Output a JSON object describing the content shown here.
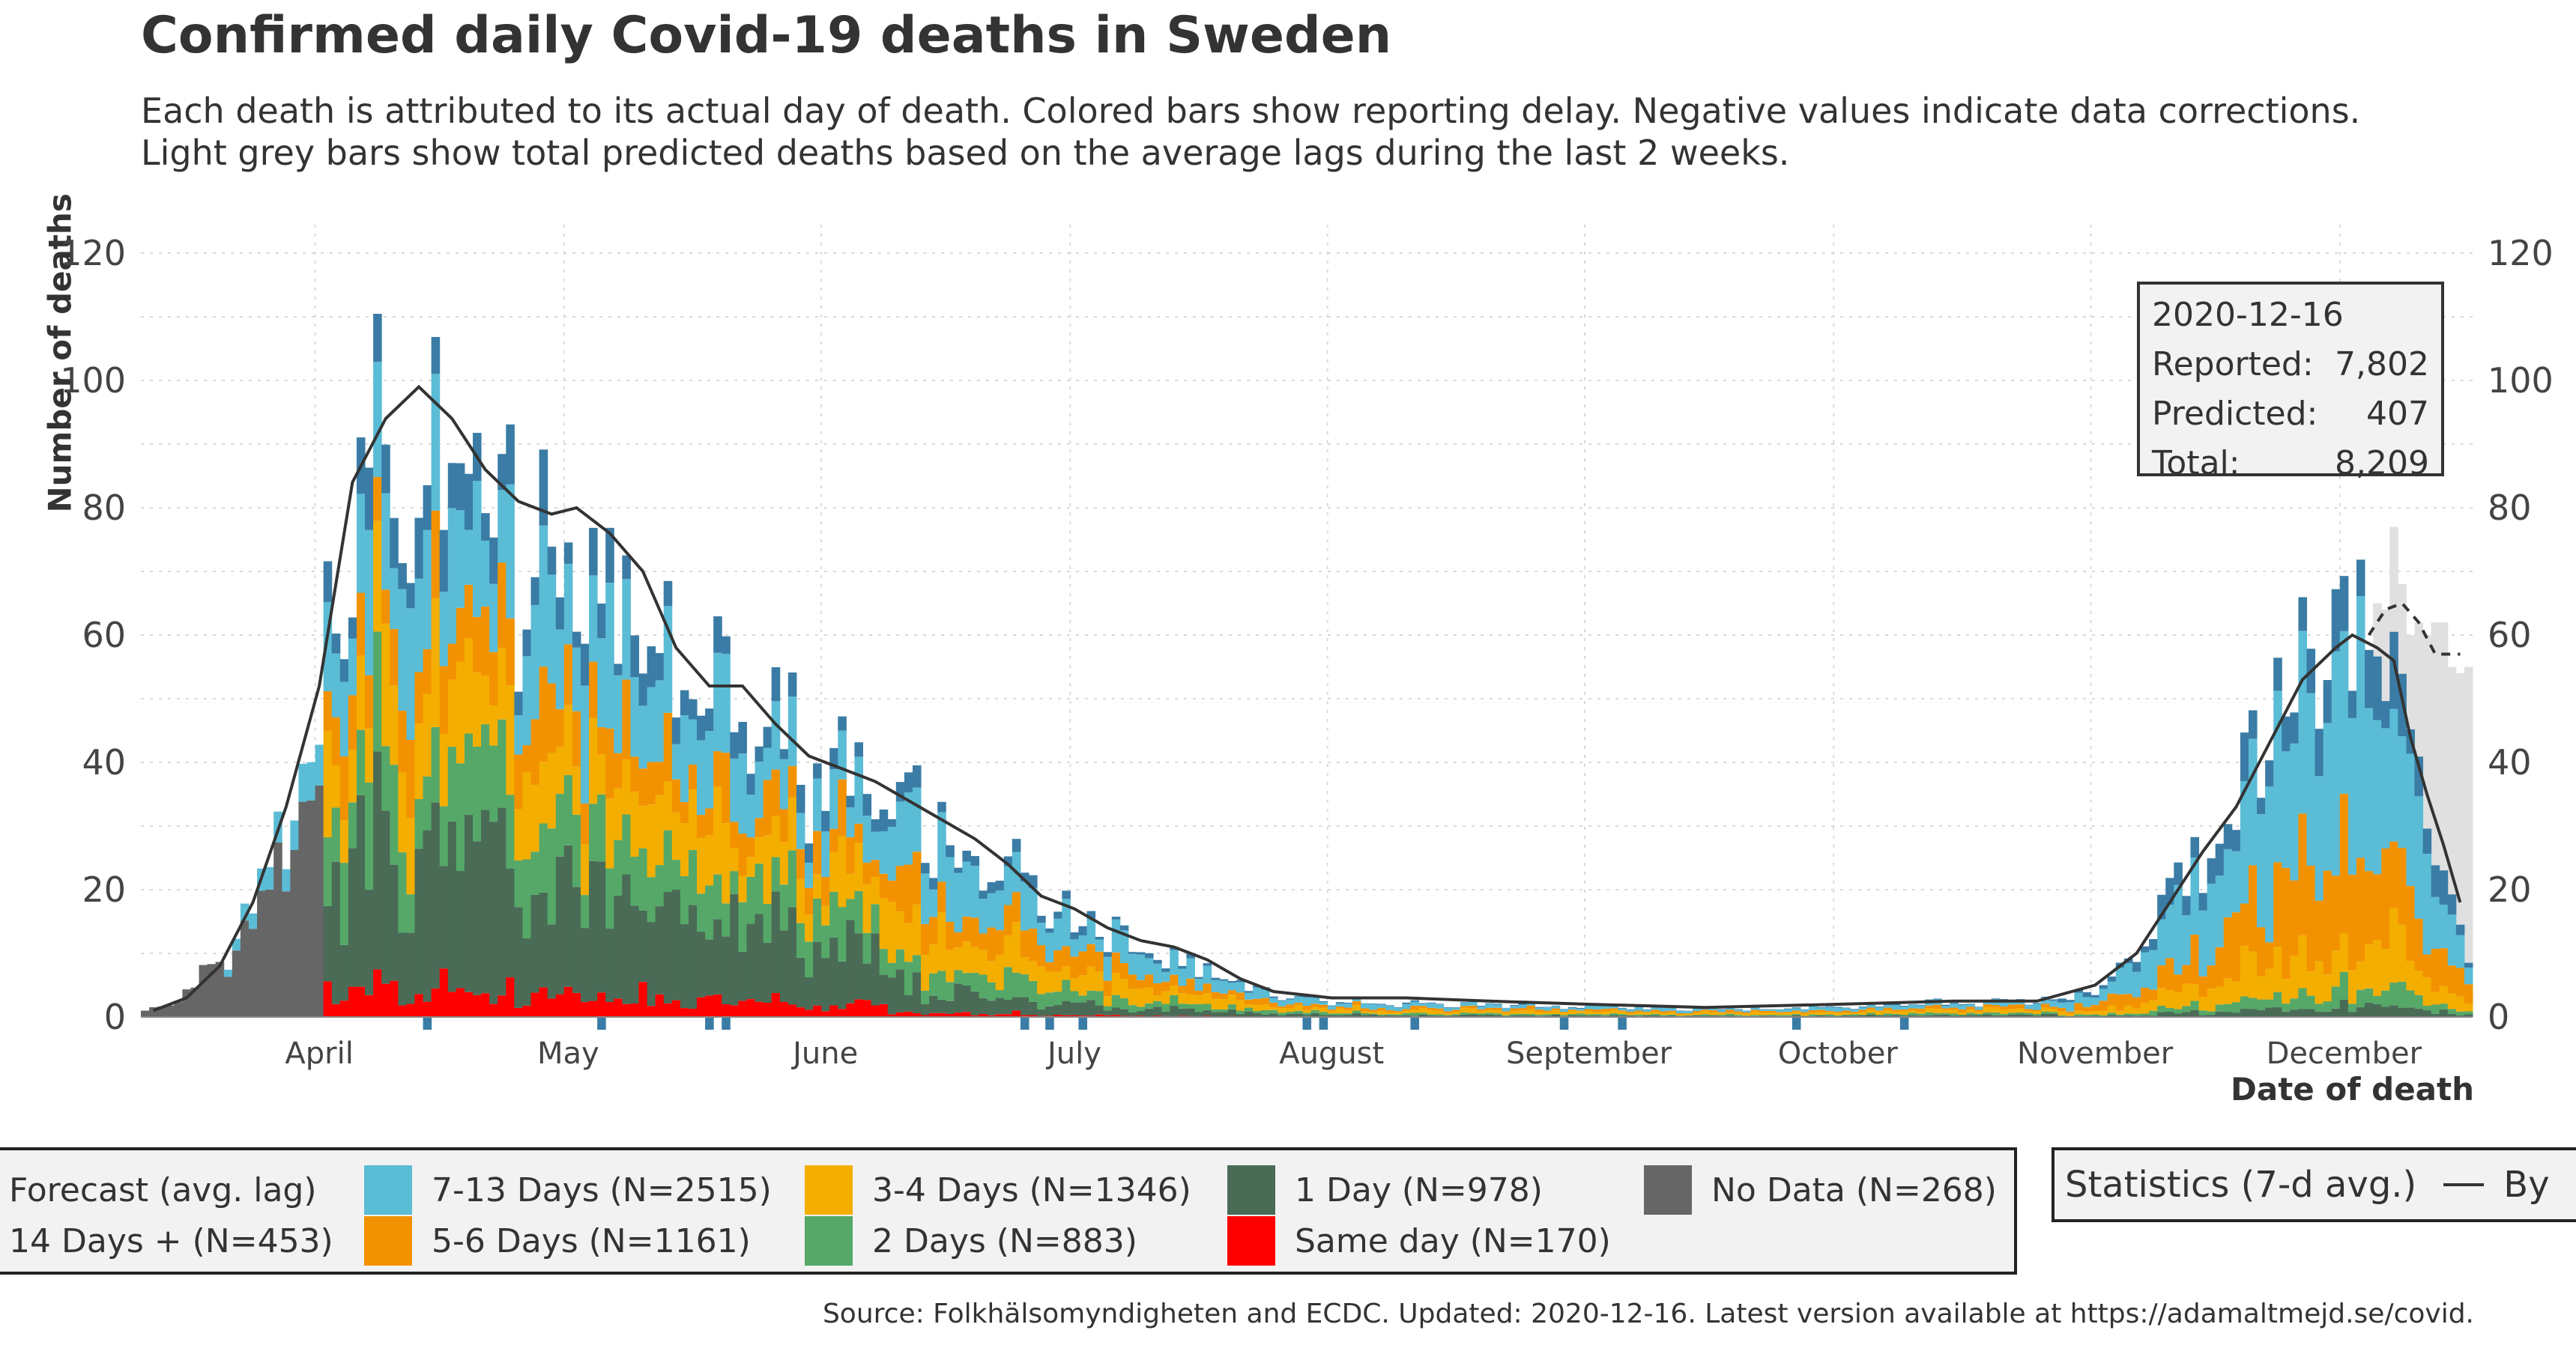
{
  "title": "Confirmed daily Covid-19 deaths in Sweden",
  "subtitle": "Each death is attributed to its actual day of death. Colored bars show reporting delay. Negative values indicate data corrections.\nLight grey bars show total predicted deaths based on the average lags during the last 2 weeks.",
  "yaxis_label": "Number of deaths",
  "xaxis_label": "Date of death",
  "info_box": {
    "date": "2020-12-16",
    "reported_label": "Reported:",
    "reported_value": "7,802",
    "predicted_label": "Predicted:",
    "predicted_value": "407",
    "total_label": "Total:",
    "total_value": "8,209"
  },
  "legend": {
    "forecast": "Forecast (avg. lag)",
    "d14": "14 Days + (N=453)",
    "d7_13": "7-13 Days (N=2515)",
    "d5_6": "5-6 Days (N=1161)",
    "d3_4": "3-4 Days (N=1346)",
    "d2": "2 Days (N=883)",
    "d1": "1 Day (N=978)",
    "same": "Same day (N=170)",
    "nodata": "No Data (N=268)"
  },
  "legend_stats": {
    "label": "Statistics (7-d avg.)",
    "item": "By"
  },
  "source": "Source: Folkhälsomyndigheten and ECDC. Updated: 2020-12-16. Latest version available at https://adamaltmejd.se/covid.",
  "colors": {
    "forecast": "#e0e0e0",
    "d14": "#3a7ca5",
    "d7_13": "#5bbcd6",
    "d5_6": "#f39200",
    "d3_4": "#f4ae00",
    "d2": "#55a868",
    "d1": "#4a6b56",
    "same": "#ff0000",
    "nodata": "#666666",
    "avgline": "#333333"
  },
  "chart_data": {
    "type": "bar",
    "stacked": true,
    "xaxis": {
      "start_date": "2020-03-11",
      "end_date": "2020-12-16",
      "ticks": [
        {
          "date": "2020-04-01",
          "label": "April"
        },
        {
          "date": "2020-05-01",
          "label": "May"
        },
        {
          "date": "2020-06-01",
          "label": "June"
        },
        {
          "date": "2020-07-01",
          "label": "July"
        },
        {
          "date": "2020-08-01",
          "label": "August"
        },
        {
          "date": "2020-09-01",
          "label": "September"
        },
        {
          "date": "2020-10-01",
          "label": "October"
        },
        {
          "date": "2020-11-01",
          "label": "November"
        },
        {
          "date": "2020-12-01",
          "label": "December"
        }
      ]
    },
    "ylim": [
      -3,
      125
    ],
    "yticks": [
      0,
      20,
      40,
      60,
      80,
      100,
      120
    ],
    "grid": true,
    "series_order": [
      "nodata",
      "same",
      "d1",
      "d2",
      "d3_4",
      "d5_6",
      "d7_13",
      "d14",
      "forecast"
    ],
    "daily_totals_approx": [
      [
        "2020-03-11",
        1
      ],
      [
        "2020-03-15",
        3
      ],
      [
        "2020-03-18",
        7
      ],
      [
        "2020-03-21",
        10
      ],
      [
        "2020-03-24",
        20
      ],
      [
        "2020-03-27",
        30
      ],
      [
        "2020-03-30",
        40
      ],
      [
        "2020-04-02",
        60
      ],
      [
        "2020-04-05",
        80
      ],
      [
        "2020-04-08",
        93
      ],
      [
        "2020-04-11",
        97
      ],
      [
        "2020-04-14",
        98
      ],
      [
        "2020-04-17",
        92
      ],
      [
        "2020-04-20",
        86
      ],
      [
        "2020-04-23",
        80
      ],
      [
        "2020-04-26",
        78
      ],
      [
        "2020-04-29",
        79
      ],
      [
        "2020-05-02",
        78
      ],
      [
        "2020-05-06",
        73
      ],
      [
        "2020-05-10",
        65
      ],
      [
        "2020-05-14",
        57
      ],
      [
        "2020-05-18",
        52
      ],
      [
        "2020-05-22",
        52
      ],
      [
        "2020-05-26",
        48
      ],
      [
        "2020-05-30",
        41
      ],
      [
        "2020-06-03",
        39
      ],
      [
        "2020-06-07",
        37
      ],
      [
        "2020-06-11",
        34
      ],
      [
        "2020-06-15",
        31
      ],
      [
        "2020-06-19",
        28
      ],
      [
        "2020-06-23",
        25
      ],
      [
        "2020-06-27",
        20
      ],
      [
        "2020-07-01",
        17
      ],
      [
        "2020-07-05",
        14
      ],
      [
        "2020-07-09",
        12
      ],
      [
        "2020-07-13",
        10
      ],
      [
        "2020-07-17",
        7
      ],
      [
        "2020-07-21",
        5
      ],
      [
        "2020-07-25",
        4
      ],
      [
        "2020-07-29",
        3
      ],
      [
        "2020-08-05",
        2.5
      ],
      [
        "2020-08-15",
        2.2
      ],
      [
        "2020-08-25",
        2
      ],
      [
        "2020-09-05",
        1.5
      ],
      [
        "2020-09-15",
        1.5
      ],
      [
        "2020-09-25",
        1.5
      ],
      [
        "2020-10-05",
        2
      ],
      [
        "2020-10-15",
        2.5
      ],
      [
        "2020-10-25",
        2.5
      ],
      [
        "2020-10-29",
        3
      ],
      [
        "2020-11-02",
        5
      ],
      [
        "2020-11-06",
        9
      ],
      [
        "2020-11-10",
        18
      ],
      [
        "2020-11-14",
        27
      ],
      [
        "2020-11-18",
        35
      ],
      [
        "2020-11-22",
        45
      ],
      [
        "2020-11-26",
        55
      ],
      [
        "2020-11-30",
        58
      ],
      [
        "2020-12-03",
        60
      ],
      [
        "2020-12-06",
        58
      ],
      [
        "2020-12-08",
        50
      ],
      [
        "2020-12-10",
        38
      ],
      [
        "2020-12-12",
        28
      ],
      [
        "2020-12-14",
        20
      ],
      [
        "2020-12-16",
        10
      ]
    ],
    "avg_line": [
      [
        "2020-03-12",
        1
      ],
      [
        "2020-03-16",
        3
      ],
      [
        "2020-03-20",
        8
      ],
      [
        "2020-03-24",
        18
      ],
      [
        "2020-03-28",
        33
      ],
      [
        "2020-04-01",
        52
      ],
      [
        "2020-04-05",
        84
      ],
      [
        "2020-04-09",
        94
      ],
      [
        "2020-04-13",
        99
      ],
      [
        "2020-04-17",
        94
      ],
      [
        "2020-04-21",
        86
      ],
      [
        "2020-04-25",
        81
      ],
      [
        "2020-04-29",
        79
      ],
      [
        "2020-05-02",
        80
      ],
      [
        "2020-05-06",
        76
      ],
      [
        "2020-05-10",
        70
      ],
      [
        "2020-05-14",
        58
      ],
      [
        "2020-05-18",
        52
      ],
      [
        "2020-05-22",
        52
      ],
      [
        "2020-05-26",
        46
      ],
      [
        "2020-05-30",
        41
      ],
      [
        "2020-06-03",
        39
      ],
      [
        "2020-06-07",
        37
      ],
      [
        "2020-06-11",
        34
      ],
      [
        "2020-06-15",
        31
      ],
      [
        "2020-06-19",
        28
      ],
      [
        "2020-06-23",
        24
      ],
      [
        "2020-06-27",
        19
      ],
      [
        "2020-07-01",
        17
      ],
      [
        "2020-07-05",
        14
      ],
      [
        "2020-07-09",
        12
      ],
      [
        "2020-07-13",
        11
      ],
      [
        "2020-07-17",
        9
      ],
      [
        "2020-07-21",
        6
      ],
      [
        "2020-07-25",
        4
      ],
      [
        "2020-08-01",
        3
      ],
      [
        "2020-08-10",
        3
      ],
      [
        "2020-08-20",
        2.5
      ],
      [
        "2020-09-01",
        2
      ],
      [
        "2020-09-15",
        1.5
      ],
      [
        "2020-10-01",
        2
      ],
      [
        "2020-10-15",
        2.5
      ],
      [
        "2020-10-25",
        2.5
      ],
      [
        "2020-11-01",
        5
      ],
      [
        "2020-11-06",
        10
      ],
      [
        "2020-11-10",
        18
      ],
      [
        "2020-11-14",
        26
      ],
      [
        "2020-11-18",
        33
      ],
      [
        "2020-11-22",
        43
      ],
      [
        "2020-11-26",
        53
      ],
      [
        "2020-11-30",
        58
      ],
      [
        "2020-12-02",
        60
      ],
      [
        "2020-12-05",
        58
      ],
      [
        "2020-12-07",
        56
      ],
      [
        "2020-12-09",
        44
      ],
      [
        "2020-12-11",
        35
      ],
      [
        "2020-12-13",
        27
      ],
      [
        "2020-12-15",
        18
      ]
    ],
    "predicted_line": [
      [
        "2020-12-04",
        60
      ],
      [
        "2020-12-06",
        64
      ],
      [
        "2020-12-08",
        65
      ],
      [
        "2020-12-10",
        62
      ],
      [
        "2020-12-12",
        57
      ],
      [
        "2020-12-15",
        57
      ]
    ],
    "forecast_bars": [
      [
        "2020-12-05",
        65
      ],
      [
        "2020-12-06",
        64
      ],
      [
        "2020-12-07",
        77
      ],
      [
        "2020-12-08",
        68
      ],
      [
        "2020-12-09",
        60
      ],
      [
        "2020-12-10",
        62
      ],
      [
        "2020-12-11",
        60
      ],
      [
        "2020-12-12",
        62
      ],
      [
        "2020-12-13",
        62
      ],
      [
        "2020-12-14",
        55
      ],
      [
        "2020-12-15",
        54
      ],
      [
        "2020-12-16",
        55
      ]
    ]
  }
}
